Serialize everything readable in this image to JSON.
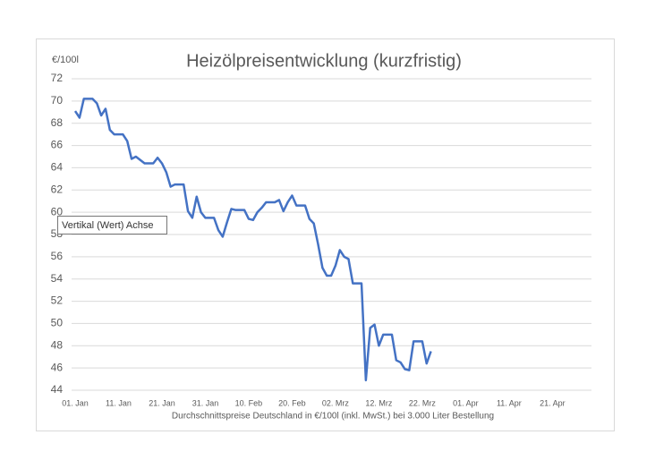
{
  "chart_data": {
    "type": "line",
    "title": "Heizölpreisentwicklung (kurzfristig)",
    "y_label": "€/100l",
    "x_label": "Durchschnittspreise Deutschland in €/100l (inkl. MwSt.) bei 3.000 Liter Bestellung",
    "tooltip": "Vertikal (Wert) Achse",
    "x": [
      0,
      1,
      2,
      4,
      5,
      6,
      7,
      8,
      9,
      11,
      12,
      13,
      14,
      16,
      18,
      19,
      20,
      21,
      22,
      23,
      25,
      26,
      27,
      28,
      29,
      30,
      32,
      33,
      34,
      35,
      36,
      37,
      39,
      40,
      41,
      42,
      43,
      44,
      46,
      47,
      48,
      49,
      50,
      51,
      53,
      54,
      55,
      56,
      57,
      58,
      59,
      60,
      61,
      62,
      63,
      64,
      66,
      67,
      68,
      69,
      70,
      71,
      73,
      74,
      75,
      76,
      77,
      78,
      80,
      81,
      82
    ],
    "series": [
      {
        "color": "#4472c4",
        "values": [
          69.1,
          68.5,
          70.2,
          70.2,
          69.8,
          68.7,
          69.3,
          67.4,
          67.0,
          67.0,
          66.4,
          64.8,
          65.0,
          64.4,
          64.4,
          64.9,
          64.4,
          63.6,
          62.3,
          62.5,
          62.5,
          60.1,
          59.5,
          61.4,
          60.0,
          59.5,
          59.5,
          58.4,
          57.8,
          59.1,
          60.3,
          60.2,
          60.2,
          59.4,
          59.3,
          60.0,
          60.4,
          60.9,
          60.9,
          61.1,
          60.1,
          60.9,
          61.5,
          60.6,
          60.6,
          59.4,
          59.0,
          57.1,
          55.0,
          54.3,
          54.3,
          55.2,
          56.6,
          56.0,
          55.8,
          53.6,
          53.6,
          44.9,
          49.6,
          49.9,
          48.0,
          49.0,
          49.0,
          46.7,
          46.5,
          45.9,
          45.8,
          48.4,
          48.4,
          46.4,
          47.5
        ]
      }
    ],
    "xlim": [
      0,
      119
    ],
    "xticks": [
      {
        "value": 0,
        "label": "01. Jan"
      },
      {
        "value": 10,
        "label": "11. Jan"
      },
      {
        "value": 20,
        "label": "21. Jan"
      },
      {
        "value": 30,
        "label": "31. Jan"
      },
      {
        "value": 40,
        "label": "10. Feb"
      },
      {
        "value": 50,
        "label": "20. Feb"
      },
      {
        "value": 60,
        "label": "02. Mrz"
      },
      {
        "value": 70,
        "label": "12. Mrz"
      },
      {
        "value": 80,
        "label": "22. Mrz"
      },
      {
        "value": 90,
        "label": "01. Apr"
      },
      {
        "value": 100,
        "label": "11. Apr"
      },
      {
        "value": 110,
        "label": "21. Apr"
      }
    ],
    "ylim": [
      44,
      72
    ],
    "yticks": [
      44,
      46,
      48,
      50,
      52,
      54,
      56,
      58,
      60,
      62,
      64,
      66,
      68,
      70,
      72
    ],
    "grid": true
  }
}
